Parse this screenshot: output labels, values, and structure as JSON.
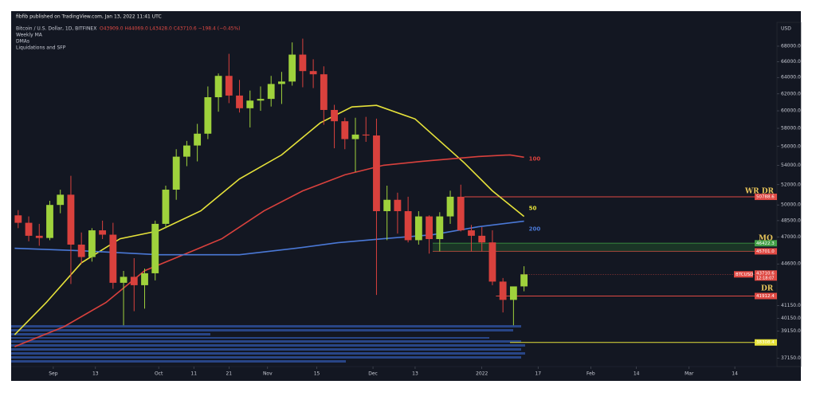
{
  "chart_data": {
    "type": "candlestick",
    "header": "fibfib published on TradingView.com, Jan 13, 2022 11:41 UTC",
    "title": "Bitcoin / U.S. Dollar, 1D, BITFINEX",
    "ohlc_text": "O43909.0 H44069.0 L43428.0 C43710.6 −198.4 (−0.45%)",
    "indicators": [
      "Weekly MA",
      "DMAs",
      "Liquidations and SFP"
    ],
    "currency": "USD",
    "log_scale": true,
    "up_color": "#9fd23c",
    "down_color": "#d9413d",
    "xlim": [
      "2021-08-20",
      "2022-03-26"
    ],
    "xticks": [
      {
        "value": "2021-09-01",
        "label": "Sep"
      },
      {
        "value": "2021-09-13",
        "label": "13"
      },
      {
        "value": "2021-10-01",
        "label": "Oct"
      },
      {
        "value": "2021-10-11",
        "label": "11"
      },
      {
        "value": "2021-10-21",
        "label": "21"
      },
      {
        "value": "2021-11-01",
        "label": "Nov"
      },
      {
        "value": "2021-11-15",
        "label": "15"
      },
      {
        "value": "2021-12-01",
        "label": "Dec"
      },
      {
        "value": "2021-12-13",
        "label": "13"
      },
      {
        "value": "2022-01-01",
        "label": "2022"
      },
      {
        "value": "2022-01-17",
        "label": "17"
      },
      {
        "value": "2022-02-01",
        "label": "Feb"
      },
      {
        "value": "2022-02-14",
        "label": "14"
      },
      {
        "value": "2022-03-01",
        "label": "Mar"
      },
      {
        "value": "2022-03-14",
        "label": "14"
      }
    ],
    "ylim": [
      36000,
      71000
    ],
    "yticks": [
      {
        "value": 68000,
        "label": "68000.0"
      },
      {
        "value": 66000,
        "label": "66000.0"
      },
      {
        "value": 64000,
        "label": "64000.0"
      },
      {
        "value": 62000,
        "label": "62000.0"
      },
      {
        "value": 60000,
        "label": "60000.0"
      },
      {
        "value": 58000,
        "label": "58000.0"
      },
      {
        "value": 56000,
        "label": "56000.0"
      },
      {
        "value": 54000,
        "label": "54000.0"
      },
      {
        "value": 52000,
        "label": "52000.0"
      },
      {
        "value": 50000,
        "label": "50000.0"
      },
      {
        "value": 48500,
        "label": "48500.0"
      },
      {
        "value": 47000,
        "label": "47000.0"
      },
      {
        "value": 44600,
        "label": "44600.0"
      },
      {
        "value": 41150,
        "label": "41150.0"
      },
      {
        "value": 40150,
        "label": "40150.0"
      },
      {
        "value": 39150,
        "label": "39150.0"
      },
      {
        "value": 37150,
        "label": "37150.0"
      }
    ],
    "x": [
      "2021-08-22",
      "2021-08-25",
      "2021-08-28",
      "2021-08-31",
      "2021-09-03",
      "2021-09-06",
      "2021-09-09",
      "2021-09-12",
      "2021-09-15",
      "2021-09-18",
      "2021-09-21",
      "2021-09-24",
      "2021-09-27",
      "2021-09-30",
      "2021-10-03",
      "2021-10-06",
      "2021-10-09",
      "2021-10-12",
      "2021-10-15",
      "2021-10-18",
      "2021-10-21",
      "2021-10-24",
      "2021-10-27",
      "2021-10-30",
      "2021-11-02",
      "2021-11-05",
      "2021-11-08",
      "2021-11-11",
      "2021-11-14",
      "2021-11-17",
      "2021-11-20",
      "2021-11-23",
      "2021-11-26",
      "2021-11-29",
      "2021-12-02",
      "2021-12-05",
      "2021-12-08",
      "2021-12-11",
      "2021-12-14",
      "2021-12-17",
      "2021-12-20",
      "2021-12-23",
      "2021-12-26",
      "2021-12-29",
      "2022-01-01",
      "2022-01-04",
      "2022-01-07",
      "2022-01-10",
      "2022-01-13"
    ],
    "ohlc": [
      [
        49000,
        49500,
        47800,
        48300
      ],
      [
        48300,
        48900,
        46600,
        47100
      ],
      [
        47100,
        48200,
        46200,
        46900
      ],
      [
        46900,
        50400,
        46700,
        50000
      ],
      [
        50000,
        51500,
        49200,
        51000
      ],
      [
        51000,
        52900,
        42900,
        46300
      ],
      [
        46300,
        47400,
        44600,
        45200
      ],
      [
        45200,
        47800,
        44800,
        47600
      ],
      [
        47600,
        48500,
        46800,
        47200
      ],
      [
        47200,
        48300,
        42500,
        43000
      ],
      [
        43000,
        44000,
        39600,
        43500
      ],
      [
        43500,
        45100,
        40700,
        42800
      ],
      [
        42800,
        44200,
        40900,
        43800
      ],
      [
        43800,
        48500,
        43200,
        48200
      ],
      [
        48200,
        51900,
        47800,
        51500
      ],
      [
        51500,
        55700,
        50500,
        54900
      ],
      [
        54900,
        56600,
        53900,
        56100
      ],
      [
        56100,
        58500,
        54400,
        57400
      ],
      [
        57400,
        62900,
        56800,
        61600
      ],
      [
        61600,
        64500,
        59900,
        64200
      ],
      [
        64200,
        67000,
        60900,
        61800
      ],
      [
        61800,
        63700,
        59800,
        60300
      ],
      [
        60300,
        62400,
        58100,
        61200
      ],
      [
        61200,
        62900,
        60000,
        61400
      ],
      [
        61400,
        64200,
        60500,
        63200
      ],
      [
        63200,
        64700,
        60800,
        63500
      ],
      [
        63500,
        68500,
        63000,
        66900
      ],
      [
        66900,
        69000,
        62800,
        64800
      ],
      [
        64800,
        66300,
        62700,
        64400
      ],
      [
        64400,
        65400,
        58400,
        60100
      ],
      [
        60100,
        60700,
        55800,
        58800
      ],
      [
        58800,
        59200,
        55700,
        56800
      ],
      [
        56800,
        59200,
        53300,
        57300
      ],
      [
        57300,
        59300,
        56500,
        57200
      ],
      [
        57200,
        59100,
        42000,
        49400
      ],
      [
        49400,
        51900,
        46700,
        50500
      ],
      [
        50500,
        51200,
        47300,
        49400
      ],
      [
        49400,
        50800,
        46500,
        46700
      ],
      [
        46700,
        49400,
        46300,
        48900
      ],
      [
        48900,
        49000,
        45500,
        46800
      ],
      [
        46800,
        49300,
        45700,
        48900
      ],
      [
        48900,
        51400,
        48200,
        50800
      ],
      [
        50800,
        52000,
        47500,
        47600
      ],
      [
        47600,
        48100,
        45700,
        47100
      ],
      [
        47100,
        47900,
        45700,
        46500
      ],
      [
        46500,
        47600,
        42800,
        43100
      ],
      [
        43100,
        43400,
        40600,
        41600
      ],
      [
        41600,
        42500,
        39600,
        42700
      ],
      [
        42700,
        44400,
        42300,
        43710.6
      ]
    ],
    "series": [
      {
        "name": "50",
        "color": "#e6e23a",
        "x": [
          "2021-08-21",
          "2021-08-30",
          "2021-09-09",
          "2021-09-20",
          "2021-10-01",
          "2021-10-13",
          "2021-10-24",
          "2021-11-05",
          "2021-11-16",
          "2021-11-25",
          "2021-12-02",
          "2021-12-13",
          "2021-12-27",
          "2022-01-04",
          "2022-01-13"
        ],
        "values": [
          38880,
          41390,
          44700,
          46830,
          47560,
          49430,
          52590,
          55090,
          58610,
          60450,
          60640,
          59060,
          54240,
          51380,
          48900
        ]
      },
      {
        "name": "100",
        "color": "#d9413d",
        "x": [
          "2021-08-21",
          "2021-09-04",
          "2021-09-16",
          "2021-09-27",
          "2021-10-08",
          "2021-10-19",
          "2021-10-31",
          "2021-11-11",
          "2021-11-23",
          "2021-12-04",
          "2021-12-15",
          "2021-12-31",
          "2022-01-09",
          "2022-01-13"
        ],
        "values": [
          38000,
          39490,
          41390,
          44020,
          45400,
          46830,
          49430,
          51380,
          53000,
          53990,
          54410,
          54920,
          55090,
          54840
        ]
      },
      {
        "name": "200",
        "color": "#4a78d6",
        "x": [
          "2021-08-21",
          "2021-09-09",
          "2021-10-01",
          "2021-10-24",
          "2021-11-09",
          "2021-11-21",
          "2021-12-04",
          "2021-12-18",
          "2021-12-31",
          "2022-01-13"
        ],
        "values": [
          45970,
          45750,
          45400,
          45400,
          45970,
          46470,
          46830,
          47190,
          47930,
          48450
        ]
      }
    ],
    "levels": [
      {
        "value": 50788.6,
        "color": "#e04a44",
        "start": "2021-12-27"
      },
      {
        "value": 46422.3,
        "color": "#43a047",
        "start": "2021-12-18"
      },
      {
        "value": 45701,
        "label": "45701.0",
        "color": "#e04a44",
        "start": "2021-12-18"
      },
      {
        "value": 41912.4,
        "color": "#e04a44",
        "start": "2022-01-05"
      },
      {
        "value": 38308.4,
        "color": "#e6e23a",
        "start": "2022-01-09"
      }
    ],
    "last_price": {
      "label": "BTCUSD",
      "countdown": "12:18:07",
      "color": "#e04a44"
    },
    "annotations": [
      {
        "text": "WR DR",
        "color": "#e8c55a"
      },
      {
        "text": "MO",
        "color": "#e8c55a"
      },
      {
        "text": "DR",
        "color": "#e8c55a"
      }
    ]
  }
}
